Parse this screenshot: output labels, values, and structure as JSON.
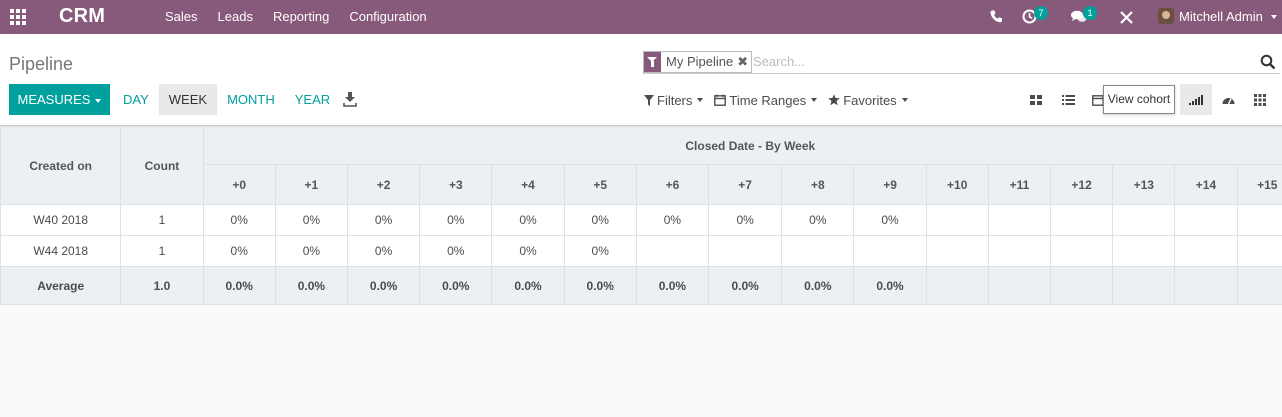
{
  "navbar": {
    "app_name": "CRM",
    "menu": [
      "Sales",
      "Leads",
      "Reporting",
      "Configuration"
    ],
    "activity_count": "7",
    "message_count": "1",
    "user_name": "Mitchell Admin"
  },
  "control_panel": {
    "title": "Pipeline",
    "search": {
      "facet_value": "My Pipeline",
      "facet_remove": "✖",
      "placeholder": "Search..."
    },
    "measures_label": "MEASURES",
    "intervals": [
      "DAY",
      "WEEK",
      "MONTH",
      "YEAR"
    ],
    "active_interval": "WEEK",
    "filters_label": "Filters",
    "time_ranges_label": "Time Ranges",
    "favorites_label": "Favorites",
    "tooltip": "View cohort"
  },
  "cohort": {
    "row_header": "Created on",
    "count_header": "Count",
    "group_header": "Closed Date - By Week",
    "columns": [
      "+0",
      "+1",
      "+2",
      "+3",
      "+4",
      "+5",
      "+6",
      "+7",
      "+8",
      "+9",
      "+10",
      "+11",
      "+12",
      "+13",
      "+14",
      "+15"
    ],
    "rows": [
      {
        "label": "W40 2018",
        "count": "1",
        "values": [
          "0%",
          "0%",
          "0%",
          "0%",
          "0%",
          "0%",
          "0%",
          "0%",
          "0%",
          "0%",
          "",
          "",
          "",
          "",
          "",
          ""
        ]
      },
      {
        "label": "W44 2018",
        "count": "1",
        "values": [
          "0%",
          "0%",
          "0%",
          "0%",
          "0%",
          "0%",
          "",
          "",
          "",
          "",
          "",
          "",
          "",
          "",
          "",
          ""
        ]
      }
    ],
    "average": {
      "label": "Average",
      "count": "1.0",
      "values": [
        "0.0%",
        "0.0%",
        "0.0%",
        "0.0%",
        "0.0%",
        "0.0%",
        "0.0%",
        "0.0%",
        "0.0%",
        "0.0%",
        "",
        "",
        "",
        "",
        "",
        ""
      ]
    }
  }
}
